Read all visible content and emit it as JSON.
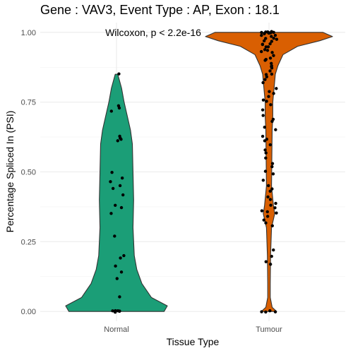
{
  "chart_data": {
    "type": "violin",
    "title": "Gene : VAV3, Event Type : AP, Exon : 18.1",
    "xlabel": "Tissue Type",
    "ylabel": "Percentage Spliced In (PSI)",
    "ylim": [
      -0.035,
      1.035
    ],
    "yticks": [
      0.0,
      0.25,
      0.5,
      0.75,
      1.0
    ],
    "ytick_labels": [
      "0.00",
      "0.25",
      "0.50",
      "0.75",
      "1.00"
    ],
    "grid": true,
    "annotation": "Wilcoxon, p < 2.2e-16",
    "categories": [
      "Normal",
      "Tumour"
    ],
    "series": [
      {
        "category": "Normal",
        "color": "#1b9e77",
        "range": [
          0.0,
          0.85
        ],
        "density_profile": [
          [
            0.0,
            0.75
          ],
          [
            0.02,
            0.8
          ],
          [
            0.05,
            0.55
          ],
          [
            0.1,
            0.4
          ],
          [
            0.15,
            0.32
          ],
          [
            0.2,
            0.28
          ],
          [
            0.3,
            0.26
          ],
          [
            0.4,
            0.27
          ],
          [
            0.5,
            0.26
          ],
          [
            0.6,
            0.25
          ],
          [
            0.65,
            0.22
          ],
          [
            0.7,
            0.17
          ],
          [
            0.75,
            0.12
          ],
          [
            0.8,
            0.08
          ],
          [
            0.85,
            0.02
          ]
        ],
        "points": [
          0.85,
          0.74,
          0.73,
          0.72,
          0.63,
          0.62,
          0.615,
          0.61,
          0.5,
          0.48,
          0.465,
          0.45,
          0.44,
          0.42,
          0.38,
          0.37,
          0.35,
          0.27,
          0.2,
          0.19,
          0.165,
          0.14,
          0.12,
          0.05,
          0.0,
          0.0,
          0.0,
          0.0,
          0.0,
          0.0,
          0.0
        ]
      },
      {
        "category": "Tumour",
        "color": "#d95f02",
        "range": [
          0.0,
          1.0
        ],
        "density_profile": [
          [
            0.0,
            0.12
          ],
          [
            0.015,
            0.05
          ],
          [
            0.05,
            0.02
          ],
          [
            0.1,
            0.02
          ],
          [
            0.2,
            0.025
          ],
          [
            0.3,
            0.04
          ],
          [
            0.35,
            0.09
          ],
          [
            0.38,
            0.07
          ],
          [
            0.45,
            0.04
          ],
          [
            0.55,
            0.045
          ],
          [
            0.65,
            0.05
          ],
          [
            0.7,
            0.06
          ],
          [
            0.75,
            0.06
          ],
          [
            0.8,
            0.08
          ],
          [
            0.85,
            0.1
          ],
          [
            0.88,
            0.14
          ],
          [
            0.92,
            0.22
          ],
          [
            0.95,
            0.45
          ],
          [
            0.97,
            0.8
          ],
          [
            0.985,
            1.0
          ],
          [
            1.0,
            0.85
          ]
        ],
        "points": [
          1.0,
          1.0,
          1.0,
          1.0,
          1.0,
          1.0,
          1.0,
          1.0,
          1.0,
          1.0,
          0.995,
          0.99,
          0.99,
          0.985,
          0.98,
          0.98,
          0.975,
          0.97,
          0.97,
          0.96,
          0.96,
          0.955,
          0.95,
          0.95,
          0.94,
          0.935,
          0.93,
          0.93,
          0.92,
          0.91,
          0.9,
          0.9,
          0.89,
          0.88,
          0.88,
          0.87,
          0.86,
          0.85,
          0.85,
          0.84,
          0.83,
          0.82,
          0.8,
          0.79,
          0.78,
          0.77,
          0.76,
          0.75,
          0.74,
          0.72,
          0.7,
          0.69,
          0.68,
          0.66,
          0.65,
          0.63,
          0.62,
          0.61,
          0.6,
          0.58,
          0.57,
          0.55,
          0.53,
          0.52,
          0.5,
          0.49,
          0.47,
          0.45,
          0.44,
          0.43,
          0.41,
          0.4,
          0.39,
          0.38,
          0.37,
          0.36,
          0.36,
          0.35,
          0.34,
          0.33,
          0.32,
          0.31,
          0.22,
          0.2,
          0.18,
          0.17,
          0.0,
          0.0,
          0.0,
          0.0
        ]
      }
    ]
  }
}
